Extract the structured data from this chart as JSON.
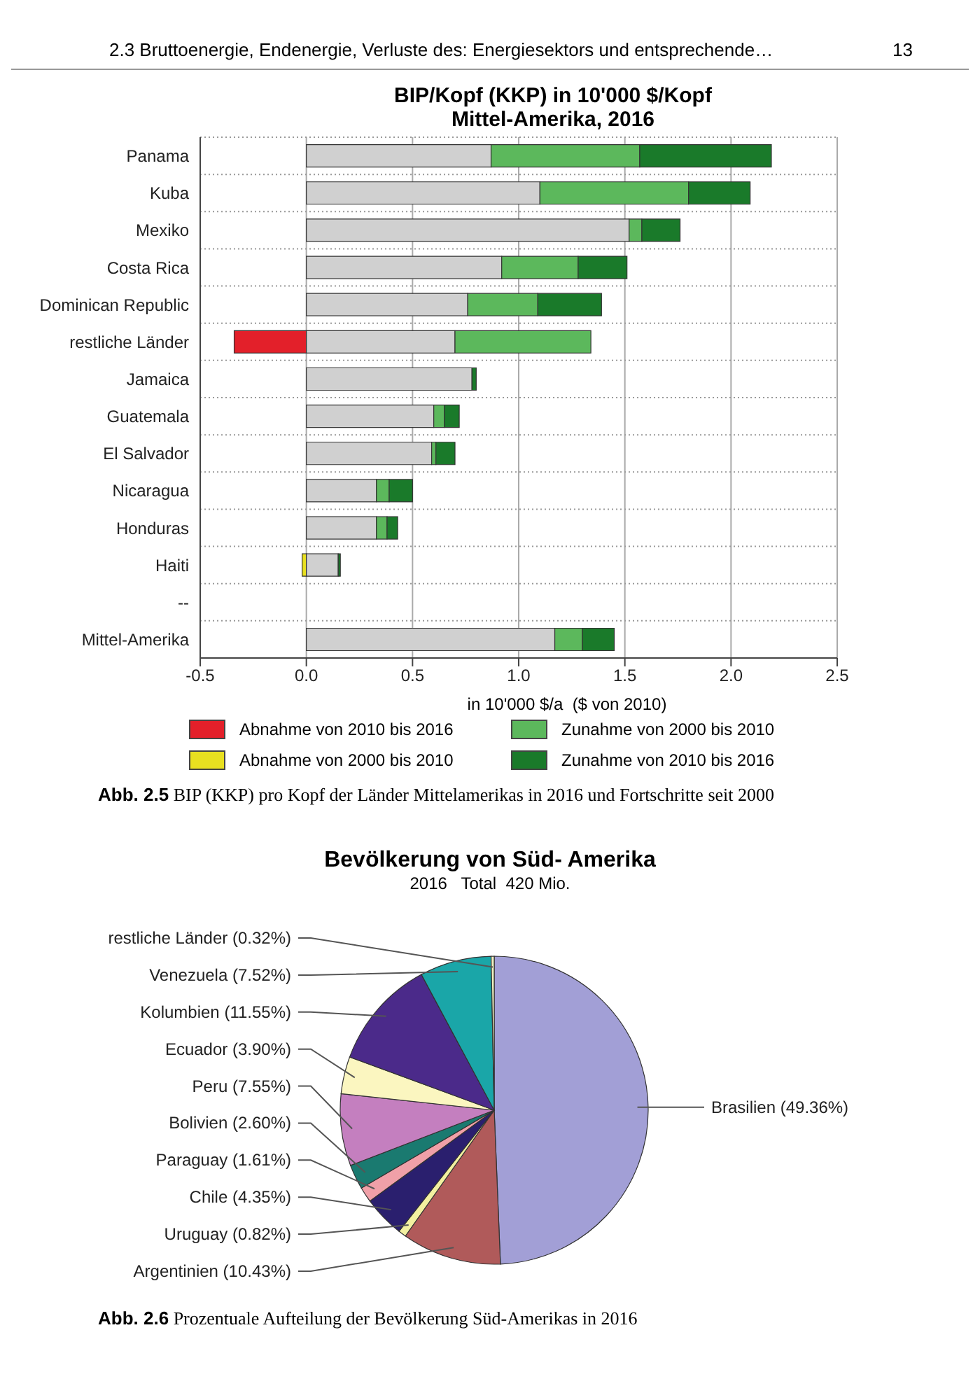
{
  "chart_data": [
    {
      "type": "bar",
      "orientation": "horizontal",
      "stacked": true,
      "title": "BIP/Kopf (KKP) in 10'000 $/Kopf\nMittel-Amerika,  2016",
      "xlabel": "in 10'000 $/a  ($ von 2010)",
      "annotations": [
        "2.3 Bruttoenergie, Endenergie, Verluste des: Energiesektors und entsprechende…",
        "13",
        "Abb. 2.5 BIP (KKP) pro Kopf der Länder Mittelamerikas in 2016 und Fortschritte seit 2000"
      ],
      "categories": [
        "Panama",
        "Kuba",
        "Mexiko",
        "Costa Rica",
        "Dominican Republic",
        "restliche Länder",
        "Jamaica",
        "Guatemala",
        "El Salvador",
        "Nicaragua",
        "Honduras",
        "Haiti",
        "--",
        "Mittel-Amerika"
      ],
      "series": [
        {
          "name": "Abnahme von 2010 bis 2016",
          "color": "#e3202a",
          "values": [
            null,
            null,
            null,
            null,
            null,
            -0.34,
            null,
            null,
            null,
            null,
            null,
            null,
            null,
            null
          ]
        },
        {
          "name": "Abnahme von 2000 bis 2010",
          "color": "#e8e020",
          "values": [
            null,
            null,
            null,
            null,
            null,
            null,
            null,
            null,
            null,
            null,
            null,
            -0.02,
            null,
            null
          ]
        },
        {
          "color": "#d0d0d0",
          "values": [
            0.87,
            1.1,
            1.52,
            0.92,
            0.76,
            0.7,
            0.78,
            0.6,
            0.59,
            0.33,
            0.33,
            0.15,
            null,
            1.17
          ]
        },
        {
          "name": "Zunahme von 2000 bis 2010",
          "color": "#5cb85c",
          "values": [
            0.7,
            0.7,
            0.06,
            0.36,
            0.33,
            0.64,
            null,
            0.05,
            0.02,
            0.06,
            0.05,
            null,
            null,
            0.13
          ]
        },
        {
          "name": "Zunahme von 2010 bis 2016",
          "color": "#1a7a2a",
          "values": [
            0.62,
            0.29,
            0.18,
            0.23,
            0.3,
            null,
            0.02,
            0.07,
            0.09,
            0.11,
            0.05,
            0.01,
            null,
            0.15
          ]
        }
      ],
      "xlim": [
        -0.5,
        2.5
      ],
      "xticks": [
        -0.5,
        {
          "value": 0,
          "label": "0.0"
        },
        0.5,
        {
          "value": 1,
          "label": "1.0"
        },
        1.5,
        {
          "value": 2,
          "label": "2.0"
        },
        2.5
      ],
      "grid": true,
      "legend": "bottom"
    },
    {
      "type": "pie",
      "title": "Bevölkerung von Süd- Amerika",
      "subtitle": "2016   Total  420 Mio.",
      "annotations": [
        "Abb. 2.6 Prozentuale Aufteilung der Bevölkerung Süd-Amerikas in 2016"
      ],
      "categories": [
        "Brasilien (49.36%)",
        "Argentinien (10.43%)",
        "Uruguay (0.82%)",
        "Chile (4.35%)",
        "Paraguay (1.61%)",
        "Bolivien (2.60%)",
        "Peru (7.55%)",
        "Ecuador (3.90%)",
        "Kolumbien (11.55%)",
        "Venezuela (7.52%)",
        "restliche Länder (0.32%)"
      ],
      "values": [
        49.36,
        10.43,
        0.82,
        4.35,
        1.61,
        2.6,
        7.55,
        3.9,
        11.55,
        7.52,
        0.32
      ],
      "colors": [
        "#a29fd6",
        "#b05a5a",
        "#f2f0a0",
        "#2a1f6e",
        "#f0a0a8",
        "#1a7a70",
        "#c47fbf",
        "#fbf6c0",
        "#4b2a8a",
        "#1aa6a8",
        "#f0f0c0"
      ]
    }
  ]
}
